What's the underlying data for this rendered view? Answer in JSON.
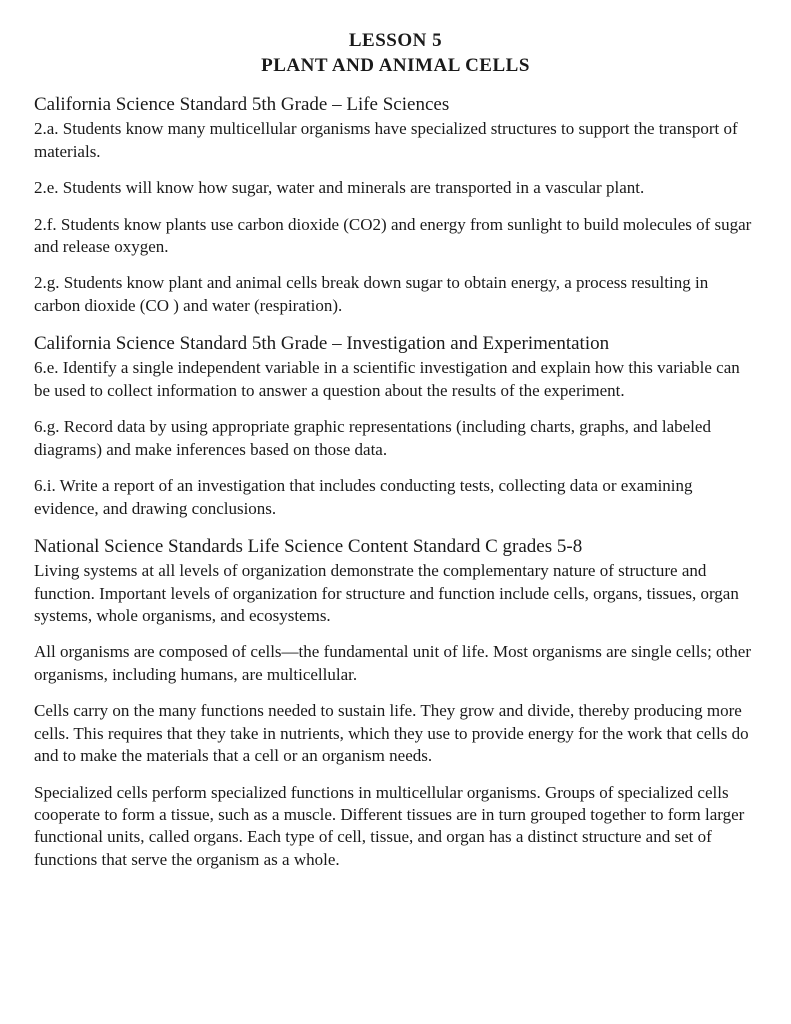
{
  "header": {
    "lesson_number": "LESSON 5",
    "lesson_title": "PLANT AND ANIMAL CELLS"
  },
  "sections": {
    "ca_life_sciences": {
      "heading": "California Science Standard 5th Grade – Life Sciences",
      "p1": "2.a. Students know many multicellular organisms have specialized structures to support the transport of materials.",
      "p2": "2.e. Students will know how sugar, water and minerals are transported in a vascular plant.",
      "p3": "2.f. Students know plants use carbon dioxide (CO2) and energy from sunlight to build molecules of sugar and release oxygen.",
      "p4": "2.g. Students know plant and animal cells break down sugar to obtain energy, a process resulting in carbon dioxide (CO ) and water (respiration)."
    },
    "ca_investigation": {
      "heading": "California Science Standard 5th Grade – Investigation and Experimentation",
      "p1": "6.e. Identify a single independent variable in a scientific investigation and explain how this variable can be used to collect information to answer a question about the results of the experiment.",
      "p2": "6.g. Record data by using appropriate graphic representations (including charts, graphs, and labeled diagrams) and make inferences based on those data.",
      "p3": "6.i. Write a report of an investigation that includes conducting tests, collecting data or examining evidence, and drawing conclusions."
    },
    "national": {
      "heading": "National Science Standards Life Science Content Standard C grades 5-8",
      "p1": "Living systems at all levels of organization demonstrate the complementary nature of structure and function. Important levels of organization for structure and function include cells, organs, tissues, organ systems, whole organisms, and ecosystems.",
      "p2": "All organisms are composed of cells—the fundamental unit of life. Most organisms are single cells; other organisms, including humans, are multicellular.",
      "p3": "Cells carry on the many functions needed to sustain life. They grow and divide, thereby producing more cells. This requires that they take in nutrients, which they use to provide energy for the work that cells do and to make the materials that a cell or an organism needs.",
      "p4": "Specialized cells perform specialized functions in multicellular organisms. Groups of specialized cells cooperate to form a tissue, such as a muscle. Different tissues are in turn grouped together to form larger functional units, called organs. Each type of cell, tissue, and organ has a distinct structure and set of functions that serve the organism as a whole."
    }
  }
}
